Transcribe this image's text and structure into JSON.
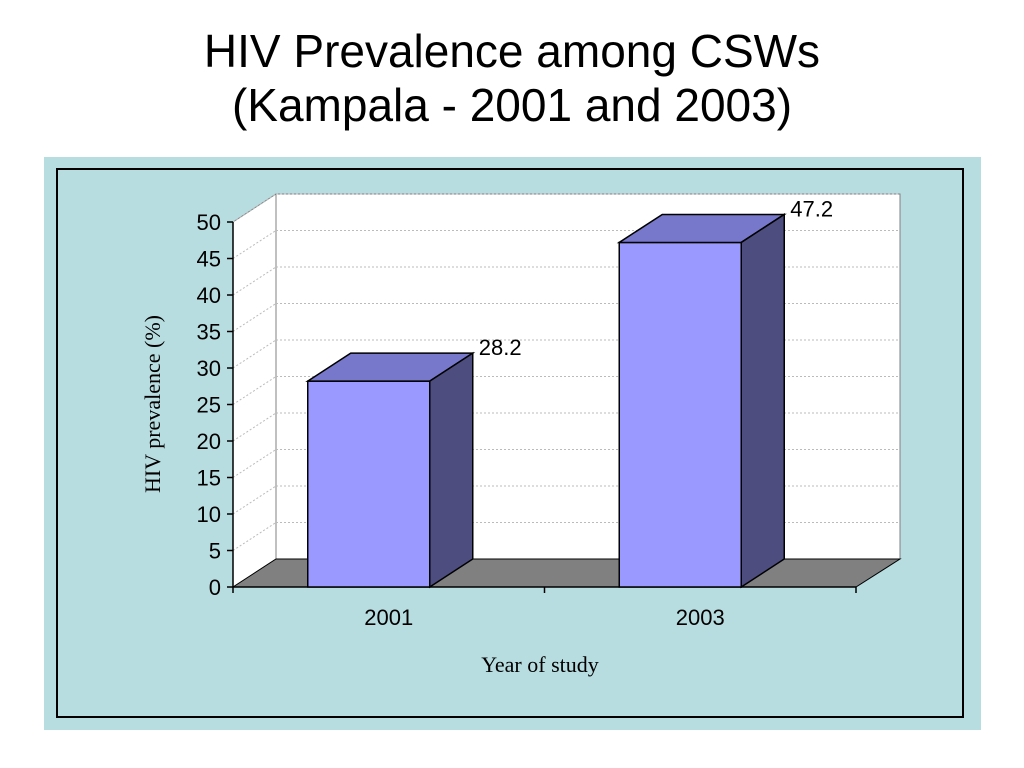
{
  "title": {
    "line1": "HIV Prevalence among CSWs",
    "line2": "(Kampala - 2001 and 2003)"
  },
  "chart_data": {
    "type": "bar",
    "style": "3d-column",
    "categories": [
      "2001",
      "2003"
    ],
    "values": [
      28.2,
      47.2
    ],
    "data_labels": [
      "28.2",
      "47.2"
    ],
    "xlabel": "Year of study",
    "ylabel": "HIV prevalence (%)",
    "ylim": [
      0,
      50
    ],
    "yticks": [
      "0",
      "5",
      "10",
      "15",
      "20",
      "25",
      "30",
      "35",
      "40",
      "45",
      "50"
    ],
    "grid": true,
    "legend": "none",
    "colors": {
      "bar_front": "#9999ff",
      "bar_top": "#7777cc",
      "bar_side": "#4d4d80",
      "floor": "#808080",
      "background": "#b8dde1"
    }
  }
}
